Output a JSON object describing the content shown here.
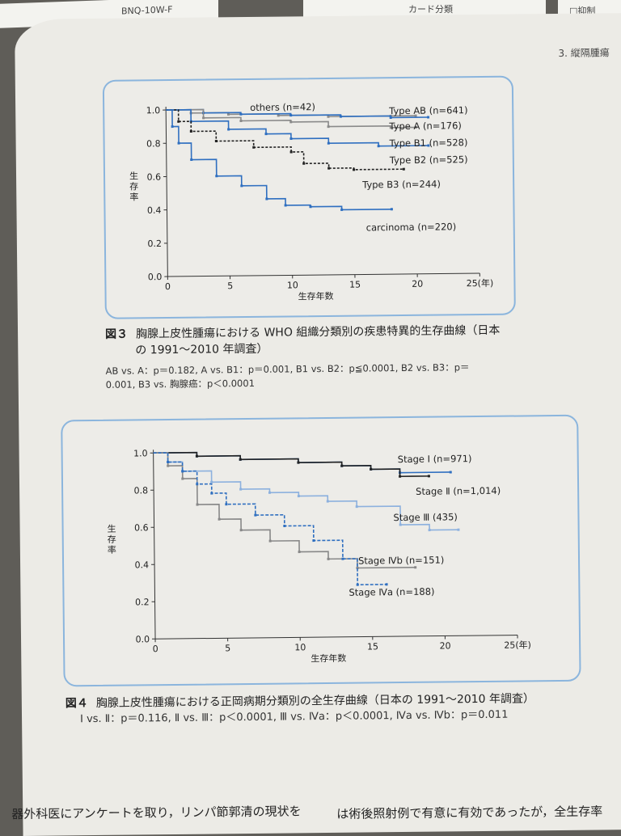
{
  "header": {
    "chapter": "3. 縦隔腫瘍"
  },
  "scraps": {
    "left_note": "BNQ-10W-F",
    "middle_note": "カード分類",
    "right_note": "□抑制"
  },
  "fig3": {
    "caption_num": "図３",
    "caption_line1": "胸腺上皮性腫瘍における WHO 組織分類別の疾患特異的生存曲線（日本",
    "caption_line2": "の 1991〜2010 年調査）",
    "note_line1": "AB vs. A：p＝0.182, A vs. B1：p＝0.001, B1 vs. B2：p≦0.0001, B2 vs. B3：p＝",
    "note_line2": "0.001, B3 vs. 胸腺癌：p＜0.0001"
  },
  "fig4": {
    "caption_num": "図４",
    "caption": "胸腺上皮性腫瘍における正岡病期分類別の全生存曲線（日本の 1991〜2010 年調査）",
    "note": "Ⅰ vs. Ⅱ：p＝0.116, Ⅱ vs. Ⅲ：p＜0.0001, Ⅲ vs. Ⅳa：p＜0.0001, Ⅳa vs. Ⅳb：p＝0.011"
  },
  "body": {
    "left": "器外科医にアンケートを取り，リンパ節郭清の現状を",
    "right": "は術後照射例で有意に有効であったが，全生存率"
  },
  "chart_data": [
    {
      "type": "line",
      "ylabel": "生存率",
      "xlabel": "生存年数",
      "xlim": [
        0,
        25
      ],
      "ylim": [
        0,
        1.0
      ],
      "x_ticks": [
        "0",
        "5",
        "10",
        "15",
        "20",
        "25(年)"
      ],
      "y_ticks": [
        "0.0",
        "0.2",
        "0.4",
        "0.6",
        "0.8",
        "1.0"
      ],
      "series": [
        {
          "name": "others (n=42)",
          "color": "#8a8a8a",
          "x": [
            0,
            2,
            5,
            9,
            13,
            18,
            20
          ],
          "y": [
            1.0,
            0.98,
            0.97,
            0.96,
            0.95,
            0.95,
            0.95
          ]
        },
        {
          "name": "Type AB (n=641)",
          "color": "#2f6fc0",
          "x": [
            0,
            3,
            6,
            10,
            14,
            18,
            21
          ],
          "y": [
            1.0,
            0.98,
            0.97,
            0.96,
            0.95,
            0.94,
            0.94
          ]
        },
        {
          "name": "Type A (n=176)",
          "color": "#8a8a8a",
          "x": [
            0,
            3,
            6,
            10,
            13,
            18,
            20
          ],
          "y": [
            1.0,
            0.95,
            0.93,
            0.92,
            0.89,
            0.88,
            0.88
          ]
        },
        {
          "name": "Type B1 (n=528)",
          "color": "#2f6fc0",
          "x": [
            0,
            2,
            5,
            8,
            10,
            13,
            17,
            21
          ],
          "y": [
            1.0,
            0.93,
            0.88,
            0.85,
            0.82,
            0.79,
            0.77,
            0.77
          ]
        },
        {
          "name": "Type B2 (n=525)",
          "color": "#222222",
          "x": [
            0,
            1,
            2,
            4,
            7,
            10,
            11,
            13,
            15,
            19
          ],
          "y": [
            1.0,
            0.93,
            0.87,
            0.81,
            0.77,
            0.74,
            0.67,
            0.64,
            0.63,
            0.63
          ]
        },
        {
          "name": "Type B3 (n=244)",
          "color": "#2f6fc0",
          "x": [
            0,
            0.5,
            1,
            2,
            4,
            6,
            8,
            9.5,
            11.5,
            14,
            18
          ],
          "y": [
            1.0,
            0.9,
            0.8,
            0.7,
            0.6,
            0.54,
            0.46,
            0.42,
            0.41,
            0.39,
            0.39
          ]
        },
        {
          "name": "carcinoma (n=220)",
          "color": "#2f6fc0",
          "x": [],
          "y": []
        }
      ]
    },
    {
      "type": "line",
      "ylabel": "生存率",
      "xlabel": "生存年数",
      "xlim": [
        0,
        25
      ],
      "ylim": [
        0,
        1.0
      ],
      "x_ticks": [
        "0",
        "5",
        "10",
        "15",
        "20",
        "25(年)"
      ],
      "y_ticks": [
        "0.0",
        "0.2",
        "0.4",
        "0.6",
        "0.8",
        "1.0"
      ],
      "series": [
        {
          "name": "Stage Ⅰ (n=971)",
          "color": "#2f6fc0",
          "x": [
            0,
            3,
            6,
            10,
            13,
            15,
            17,
            20.5
          ],
          "y": [
            1.0,
            0.98,
            0.96,
            0.94,
            0.92,
            0.9,
            0.88,
            0.88
          ]
        },
        {
          "name": "Stage Ⅱ (n=1,014)",
          "color": "#222222",
          "x": [
            0,
            3,
            6,
            10,
            13,
            15,
            17,
            19
          ],
          "y": [
            1.0,
            0.98,
            0.96,
            0.94,
            0.92,
            0.9,
            0.86,
            0.86
          ]
        },
        {
          "name": "Stage Ⅲ (435)",
          "color": "#8db1de",
          "x": [
            0,
            1,
            2,
            4,
            6,
            8,
            10,
            12,
            14,
            17,
            19,
            21
          ],
          "y": [
            1.0,
            0.95,
            0.9,
            0.84,
            0.8,
            0.78,
            0.76,
            0.73,
            0.7,
            0.6,
            0.57,
            0.57
          ]
        },
        {
          "name": "Stage Ⅳb (n=151)",
          "color": "#888888",
          "x": [
            0,
            1,
            2,
            3,
            4.5,
            6,
            8,
            10,
            12,
            14,
            18
          ],
          "y": [
            1.0,
            0.93,
            0.86,
            0.72,
            0.64,
            0.58,
            0.52,
            0.46,
            0.42,
            0.37,
            0.37
          ]
        },
        {
          "name": "Stage Ⅳa (n=188)",
          "color": "#2f6fc0",
          "x": [
            0,
            1,
            2,
            3,
            4,
            5,
            7,
            9,
            11,
            13,
            14,
            16
          ],
          "y": [
            1.0,
            0.95,
            0.9,
            0.83,
            0.78,
            0.72,
            0.66,
            0.6,
            0.52,
            0.42,
            0.28,
            0.28
          ]
        }
      ]
    }
  ]
}
